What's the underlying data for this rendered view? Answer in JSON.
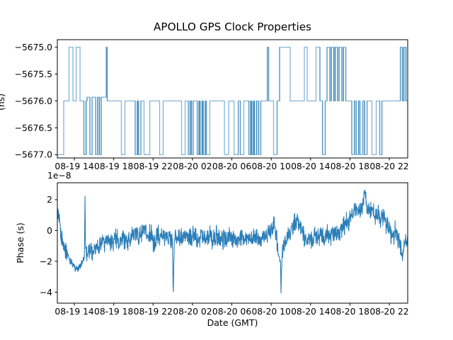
{
  "figure_title": "APOLLO GPS Clock Properties",
  "colors": {
    "line": "#1f77b4",
    "background": "#ffffff",
    "spine": "#000000",
    "text": "#000000"
  },
  "chart_data": [
    {
      "type": "line",
      "subplot": "top",
      "title": "APOLLO GPS Clock Properties",
      "drawstyle": "steps",
      "grid": false,
      "legend": null,
      "ylabel_fragment": "(ns)",
      "x_unit": "hours since 08-19 00:00 GMT",
      "xlim_hours": [
        12.27,
        47.87
      ],
      "x_ticks_hours": [
        14,
        18,
        22,
        26,
        30,
        34,
        38,
        42,
        46
      ],
      "x_tick_labels": [
        "08-19 14",
        "08-19 18",
        "08-19 22",
        "08-20 02",
        "08-20 06",
        "08-20 10",
        "08-20 14",
        "08-20 18",
        "08-20 22"
      ],
      "ylim": [
        -5677.06,
        -5674.86
      ],
      "y_ticks": [
        -5675.0,
        -5675.5,
        -5676.0,
        -5676.5,
        -5677.0
      ],
      "y_tick_labels": [
        "−5675.0",
        "−5675.5",
        "−5676.0",
        "−5676.5",
        "−5677.0"
      ],
      "series": [
        {
          "name": "clock-bias-steps",
          "segments_h0_h1_value": [
            [
              12.27,
              12.92,
              -5677
            ],
            [
              12.92,
              13.46,
              -5676
            ],
            [
              13.46,
              13.86,
              -5675
            ],
            [
              13.86,
              14.18,
              -5676
            ],
            [
              14.18,
              14.58,
              -5675
            ],
            [
              14.58,
              14.97,
              -5676
            ],
            [
              14.97,
              15.19,
              -5677
            ],
            [
              15.19,
              15.29,
              -5676
            ],
            [
              15.29,
              15.58,
              -5675.93
            ],
            [
              15.58,
              15.8,
              -5677
            ],
            [
              15.8,
              16.16,
              -5675.93
            ],
            [
              16.16,
              16.37,
              -5677
            ],
            [
              16.37,
              16.55,
              -5675.93
            ],
            [
              16.55,
              16.73,
              -5677
            ],
            [
              16.73,
              17.24,
              -5675.93
            ],
            [
              17.24,
              17.34,
              -5675
            ],
            [
              17.34,
              18.78,
              -5676
            ],
            [
              18.78,
              19.14,
              -5677
            ],
            [
              19.14,
              20.18,
              -5676
            ],
            [
              20.18,
              20.4,
              -5677
            ],
            [
              20.4,
              20.51,
              -5676
            ],
            [
              20.51,
              20.76,
              -5677
            ],
            [
              20.76,
              21.08,
              -5676
            ],
            [
              21.08,
              21.66,
              -5677
            ],
            [
              21.66,
              22.66,
              -5676
            ],
            [
              22.66,
              23.02,
              -5677
            ],
            [
              23.02,
              24.89,
              -5676
            ],
            [
              24.89,
              25.25,
              -5677
            ],
            [
              25.25,
              25.58,
              -5676
            ],
            [
              25.58,
              25.76,
              -5677
            ],
            [
              25.76,
              25.9,
              -5676
            ],
            [
              25.9,
              26.08,
              -5677
            ],
            [
              26.08,
              26.48,
              -5676
            ],
            [
              26.48,
              26.66,
              -5677
            ],
            [
              26.66,
              26.77,
              -5676
            ],
            [
              26.77,
              26.98,
              -5677
            ],
            [
              26.98,
              27.09,
              -5676
            ],
            [
              27.09,
              27.3,
              -5677
            ],
            [
              27.3,
              27.41,
              -5676
            ],
            [
              27.41,
              27.77,
              -5677
            ],
            [
              27.77,
              29.25,
              -5676
            ],
            [
              29.25,
              29.68,
              -5677
            ],
            [
              29.68,
              30.22,
              -5676
            ],
            [
              30.22,
              30.65,
              -5677
            ],
            [
              30.65,
              30.86,
              -5676
            ],
            [
              30.86,
              31.22,
              -5677
            ],
            [
              31.22,
              31.73,
              -5676
            ],
            [
              31.73,
              31.91,
              -5677
            ],
            [
              31.91,
              32.02,
              -5676
            ],
            [
              32.02,
              32.19,
              -5677
            ],
            [
              32.19,
              32.3,
              -5676
            ],
            [
              32.3,
              32.52,
              -5677
            ],
            [
              32.52,
              32.73,
              -5676
            ],
            [
              32.73,
              32.95,
              -5677
            ],
            [
              32.95,
              33.6,
              -5676
            ],
            [
              33.6,
              33.74,
              -5675
            ],
            [
              33.74,
              34.24,
              -5676
            ],
            [
              34.24,
              34.6,
              -5677
            ],
            [
              34.6,
              34.85,
              -5676
            ],
            [
              34.85,
              35.93,
              -5675
            ],
            [
              35.93,
              37.37,
              -5676
            ],
            [
              37.37,
              37.66,
              -5675
            ],
            [
              37.66,
              38.56,
              -5676
            ],
            [
              38.56,
              38.95,
              -5675
            ],
            [
              38.95,
              39.21,
              -5676
            ],
            [
              39.21,
              39.49,
              -5677
            ],
            [
              39.49,
              39.67,
              -5676
            ],
            [
              39.67,
              39.96,
              -5675
            ],
            [
              39.96,
              40.1,
              -5676
            ],
            [
              40.1,
              40.36,
              -5675
            ],
            [
              40.36,
              40.5,
              -5676
            ],
            [
              40.5,
              40.75,
              -5675
            ],
            [
              40.75,
              40.9,
              -5676
            ],
            [
              40.9,
              41.18,
              -5675
            ],
            [
              41.18,
              41.33,
              -5676
            ],
            [
              41.33,
              41.58,
              -5675
            ],
            [
              41.58,
              42.19,
              -5676
            ],
            [
              42.19,
              42.45,
              -5677
            ],
            [
              42.45,
              42.63,
              -5676
            ],
            [
              42.63,
              42.88,
              -5677
            ],
            [
              42.88,
              43.02,
              -5676
            ],
            [
              43.02,
              43.31,
              -5677
            ],
            [
              43.31,
              43.49,
              -5676
            ],
            [
              43.49,
              43.74,
              -5677
            ],
            [
              43.74,
              44.24,
              -5676
            ],
            [
              44.24,
              44.67,
              -5677
            ],
            [
              44.67,
              45.03,
              -5676
            ],
            [
              45.03,
              45.25,
              -5677
            ],
            [
              45.25,
              47.12,
              -5676
            ],
            [
              47.12,
              47.33,
              -5675
            ],
            [
              47.33,
              47.48,
              -5676
            ],
            [
              47.48,
              47.69,
              -5675
            ],
            [
              47.69,
              47.87,
              -5676
            ]
          ]
        }
      ]
    },
    {
      "type": "line",
      "subplot": "bottom",
      "xlabel": "Date (GMT)",
      "ylabel": "Phase (s)",
      "y_offset_text": "1e−8",
      "grid": false,
      "legend": null,
      "x_unit": "hours since 08-19 00:00 GMT",
      "xlim_hours": [
        12.27,
        47.87
      ],
      "x_ticks_hours": [
        14,
        18,
        22,
        26,
        30,
        34,
        38,
        42,
        46
      ],
      "x_tick_labels": [
        "08-19 14",
        "08-19 18",
        "08-19 22",
        "08-20 02",
        "08-20 06",
        "08-20 10",
        "08-20 14",
        "08-20 18",
        "08-20 22"
      ],
      "ylim_1e8": [
        -4.71,
        3.1
      ],
      "y_ticks_1e8": [
        2,
        0,
        -2,
        -4
      ],
      "y_tick_labels": [
        "2",
        "0",
        "−2",
        "−4"
      ],
      "series": [
        {
          "name": "phase-noisy-line",
          "units": "1e-8 s",
          "sample_step_hours": 0.024,
          "noise_amplitude_1e8": 0.45,
          "mean_anchors_h_v": [
            [
              12.32,
              1.35
            ],
            [
              12.45,
              0.5
            ],
            [
              12.7,
              -0.5
            ],
            [
              13.0,
              -1.1
            ],
            [
              13.3,
              -1.5
            ],
            [
              13.6,
              -1.95
            ],
            [
              13.9,
              -2.3
            ],
            [
              14.25,
              -2.55
            ],
            [
              14.6,
              -2.3
            ],
            [
              14.9,
              -1.95
            ],
            [
              15.03,
              -1.2
            ],
            [
              15.08,
              2.2
            ],
            [
              15.13,
              -1.0
            ],
            [
              15.35,
              -1.6
            ],
            [
              15.6,
              -1.1
            ],
            [
              15.9,
              -1.35
            ],
            [
              16.2,
              -0.9
            ],
            [
              16.5,
              -1.15
            ],
            [
              16.8,
              -0.65
            ],
            [
              17.1,
              -0.9
            ],
            [
              17.4,
              -0.55
            ],
            [
              17.8,
              -0.75
            ],
            [
              18.2,
              -0.45
            ],
            [
              18.6,
              -0.7
            ],
            [
              19.0,
              -0.5
            ],
            [
              19.4,
              -0.75
            ],
            [
              19.8,
              -0.35
            ],
            [
              20.2,
              -0.15
            ],
            [
              20.6,
              -0.35
            ],
            [
              21.0,
              -0.1
            ],
            [
              21.4,
              -0.3
            ],
            [
              21.8,
              -0.15
            ],
            [
              22.05,
              -0.95
            ],
            [
              22.15,
              -1.0
            ],
            [
              22.4,
              -0.2
            ],
            [
              22.8,
              -0.45
            ],
            [
              23.2,
              -0.25
            ],
            [
              23.6,
              -0.5
            ],
            [
              23.95,
              -0.65
            ],
            [
              24.05,
              -4.2
            ],
            [
              24.15,
              -0.6
            ],
            [
              24.5,
              -0.3
            ],
            [
              24.9,
              -0.55
            ],
            [
              25.3,
              -0.3
            ],
            [
              25.7,
              -0.5
            ],
            [
              26.1,
              -0.3
            ],
            [
              26.5,
              -0.55
            ],
            [
              26.9,
              -0.25
            ],
            [
              27.3,
              -0.5
            ],
            [
              27.7,
              -0.3
            ],
            [
              28.1,
              -0.55
            ],
            [
              28.5,
              -0.35
            ],
            [
              28.9,
              -0.55
            ],
            [
              29.3,
              -0.6
            ],
            [
              29.7,
              -0.4
            ],
            [
              30.1,
              -0.55
            ],
            [
              30.5,
              -0.7
            ],
            [
              30.9,
              -0.45
            ],
            [
              31.3,
              -0.6
            ],
            [
              31.7,
              -0.35
            ],
            [
              32.1,
              -0.5
            ],
            [
              32.5,
              -0.4
            ],
            [
              32.9,
              -0.6
            ],
            [
              33.3,
              -0.4
            ],
            [
              33.7,
              -0.15
            ],
            [
              34.0,
              0.25
            ],
            [
              34.3,
              0.55
            ],
            [
              34.55,
              -0.5
            ],
            [
              34.8,
              -1.8
            ],
            [
              34.95,
              -2.2
            ],
            [
              35.0,
              -3.9
            ],
            [
              35.1,
              -1.6
            ],
            [
              35.3,
              -1.0
            ],
            [
              35.55,
              -0.5
            ],
            [
              35.8,
              -0.2
            ],
            [
              36.1,
              0.1
            ],
            [
              36.4,
              0.5
            ],
            [
              36.7,
              0.6
            ],
            [
              37.0,
              0.25
            ],
            [
              37.3,
              -0.35
            ],
            [
              37.6,
              -0.8
            ],
            [
              37.9,
              -0.45
            ],
            [
              38.2,
              -0.6
            ],
            [
              38.5,
              -0.25
            ],
            [
              38.8,
              -0.5
            ],
            [
              39.1,
              -0.3
            ],
            [
              39.4,
              -0.6
            ],
            [
              39.7,
              -0.25
            ],
            [
              40.0,
              -0.45
            ],
            [
              40.4,
              -0.05
            ],
            [
              40.8,
              -0.3
            ],
            [
              41.2,
              0.2
            ],
            [
              41.6,
              0.5
            ],
            [
              42.0,
              0.75
            ],
            [
              42.4,
              1.15
            ],
            [
              42.7,
              1.45
            ],
            [
              43.0,
              1.2
            ],
            [
              43.3,
              1.55
            ],
            [
              43.55,
              2.65
            ],
            [
              43.7,
              1.3
            ],
            [
              43.9,
              1.6
            ],
            [
              44.1,
              1.15
            ],
            [
              44.35,
              1.45
            ],
            [
              44.6,
              0.95
            ],
            [
              44.85,
              1.15
            ],
            [
              45.1,
              0.7
            ],
            [
              45.4,
              0.9
            ],
            [
              45.7,
              0.45
            ],
            [
              46.0,
              0.1
            ],
            [
              46.3,
              -0.25
            ],
            [
              46.6,
              -0.1
            ],
            [
              46.9,
              -0.5
            ],
            [
              47.15,
              -1.0
            ],
            [
              47.35,
              -1.75
            ],
            [
              47.55,
              -0.7
            ],
            [
              47.7,
              -1.0
            ],
            [
              47.85,
              -0.55
            ]
          ]
        }
      ]
    }
  ]
}
